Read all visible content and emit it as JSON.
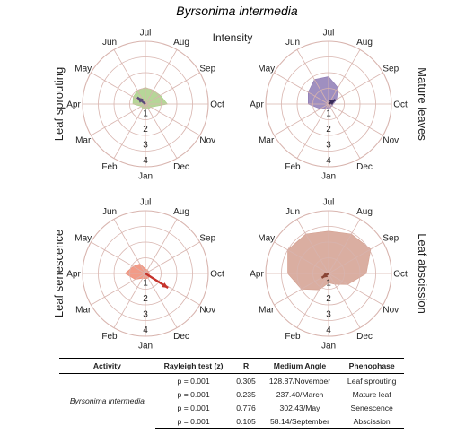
{
  "figure_title": "Byrsonima intermedia",
  "intensity_label": "Intensity",
  "months": [
    "Jan",
    "Feb",
    "Mar",
    "Apr",
    "May",
    "Jun",
    "Jul",
    "Aug",
    "Sep",
    "Oct",
    "Nov",
    "Dec"
  ],
  "rings": [
    "1",
    "2",
    "3",
    "4"
  ],
  "chart_data": [
    {
      "type": "radar",
      "label": "Leaf sprouting",
      "color": "#a9cf86",
      "arrow_color": "#5b4c7a",
      "values": [
        0.35,
        0.35,
        0.3,
        0.8,
        0.9,
        1.0,
        1.05,
        1.0,
        1.1,
        1.4,
        0.4,
        0.35
      ],
      "mean_angle_deg": 128.87,
      "r": 0.305
    },
    {
      "type": "radar",
      "label": "Mature leaves",
      "color": "#8e7bb5",
      "arrow_color": "#3b2d5a",
      "values": [
        0.3,
        0.3,
        0.6,
        1.3,
        1.5,
        1.8,
        1.75,
        1.2,
        0.6,
        0.3,
        0.25,
        0.25
      ],
      "mean_angle_deg": 237.4,
      "r": 0.235
    },
    {
      "type": "radar",
      "label": "Leaf senescence",
      "color": "#f08a72",
      "arrow_color": "#c6332b",
      "values": [
        0.35,
        0.35,
        0.75,
        1.3,
        0.9,
        0.7,
        0.3,
        0.25,
        0.25,
        0.25,
        0.3,
        0.35
      ],
      "mean_angle_deg": 302.43,
      "r": 0.776
    },
    {
      "type": "radar",
      "label": "Leaf abscission",
      "color": "#d4a090",
      "arrow_color": "#8a4535",
      "values": [
        0.6,
        1.2,
        2.0,
        2.6,
        3.0,
        2.9,
        2.7,
        2.9,
        3.1,
        2.4,
        1.4,
        0.8
      ],
      "mean_angle_deg": 58.14,
      "r": 0.105
    }
  ],
  "table": {
    "headers": [
      "Activity",
      "Rayleigh test (z)",
      "R",
      "Medium Angle",
      "Phenophase"
    ],
    "species": "Byrsonima intermedia",
    "rows": [
      [
        "p = 0.001",
        "0.305",
        "128.87/November",
        "Leaf sprouting"
      ],
      [
        "p = 0.001",
        "0.235",
        "237.40/March",
        "Mature leaf"
      ],
      [
        "p = 0.001",
        "0.776",
        "302.43/May",
        "Senescence"
      ],
      [
        "p = 0.001",
        "0.105",
        "58.14/September",
        "Abscission"
      ]
    ]
  }
}
